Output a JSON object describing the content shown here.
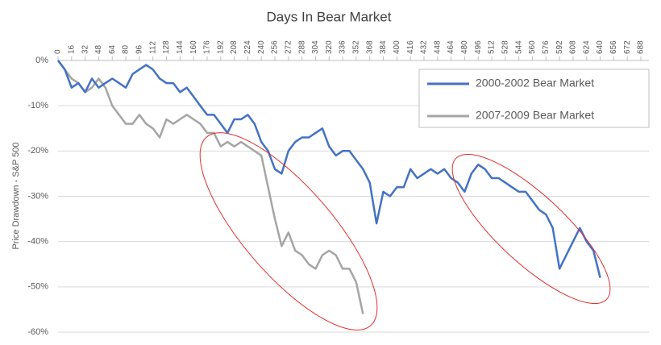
{
  "chart_data": {
    "type": "line",
    "title": "Days In Bear Market",
    "y_label": "Price Drawdown - S&P 500",
    "x": [
      0,
      8,
      16,
      24,
      32,
      40,
      48,
      56,
      64,
      72,
      80,
      88,
      96,
      104,
      112,
      120,
      128,
      136,
      144,
      152,
      160,
      168,
      176,
      184,
      192,
      200,
      208,
      216,
      224,
      232,
      240,
      248,
      256,
      264,
      272,
      280,
      288,
      296,
      304,
      312,
      320,
      328,
      336,
      344,
      352,
      360,
      368,
      376,
      384,
      392,
      400,
      408,
      416,
      424,
      432,
      440,
      448,
      456,
      464,
      472,
      480,
      488,
      496,
      504,
      512,
      520,
      528,
      536,
      544,
      552,
      560,
      568,
      576,
      584,
      592,
      600,
      608,
      616,
      624,
      632,
      640
    ],
    "series": [
      {
        "name": "2000-2002 Bear Market",
        "color": "#4472c4",
        "values": [
          0,
          -2,
          -6,
          -5,
          -7,
          -4,
          -6,
          -5,
          -4,
          -5,
          -6,
          -3,
          -2,
          -1,
          -2,
          -4,
          -5,
          -5,
          -7,
          -6,
          -8,
          -10,
          -12,
          -12,
          -14,
          -16,
          -13,
          -13,
          -12,
          -14,
          -18,
          -20,
          -24,
          -25,
          -20,
          -18,
          -17,
          -17,
          -16,
          -15,
          -19,
          -21,
          -20,
          -20,
          -22,
          -24,
          -27,
          -36,
          -29,
          -30,
          -28,
          -28,
          -24,
          -26,
          -25,
          -24,
          -25,
          -24,
          -26,
          -27,
          -29,
          -25,
          -23,
          -24,
          -26,
          -26,
          -27,
          -28,
          -29,
          -29,
          -31,
          -33,
          -34,
          -37,
          -46,
          -43,
          -40,
          -37,
          -40,
          -42,
          -48
        ]
      },
      {
        "name": "2007-2009 Bear Market",
        "color": "#a5a5a5",
        "values": [
          0,
          -2,
          -4,
          -5,
          -7,
          -6,
          -4,
          -6,
          -10,
          -12,
          -14,
          -14,
          -12,
          -14,
          -15,
          -17,
          -13,
          -14,
          -13,
          -12,
          -13,
          -14,
          -16,
          -16,
          -19,
          -18,
          -19,
          -18,
          -19,
          -20,
          -21,
          -28,
          -35,
          -41,
          -38,
          -42,
          -43,
          -45,
          -46,
          -43,
          -42,
          -43,
          -46,
          -46,
          -49,
          -56,
          null,
          null,
          null,
          null,
          null,
          null,
          null,
          null,
          null,
          null,
          null,
          null,
          null,
          null,
          null,
          null,
          null,
          null,
          null,
          null,
          null,
          null,
          null,
          null,
          null,
          null,
          null,
          null,
          null,
          null,
          null,
          null,
          null,
          null,
          null
        ]
      }
    ],
    "xlim": [
      0,
      688
    ],
    "xticks": [
      0,
      16,
      32,
      48,
      64,
      80,
      96,
      112,
      128,
      144,
      160,
      176,
      192,
      208,
      224,
      240,
      256,
      272,
      288,
      304,
      320,
      336,
      352,
      368,
      384,
      400,
      416,
      432,
      448,
      464,
      480,
      496,
      512,
      528,
      544,
      560,
      576,
      592,
      608,
      624,
      640,
      656,
      672,
      688
    ],
    "ylim": [
      -60,
      0
    ],
    "yticks": [
      {
        "value": 0,
        "label": "0%"
      },
      {
        "value": -10,
        "label": "-10%"
      },
      {
        "value": -20,
        "label": "-20%"
      },
      {
        "value": -30,
        "label": "-30%"
      },
      {
        "value": -40,
        "label": "-40%"
      },
      {
        "value": -50,
        "label": "-50%"
      },
      {
        "value": -60,
        "label": "-60%"
      }
    ],
    "grid": true
  }
}
